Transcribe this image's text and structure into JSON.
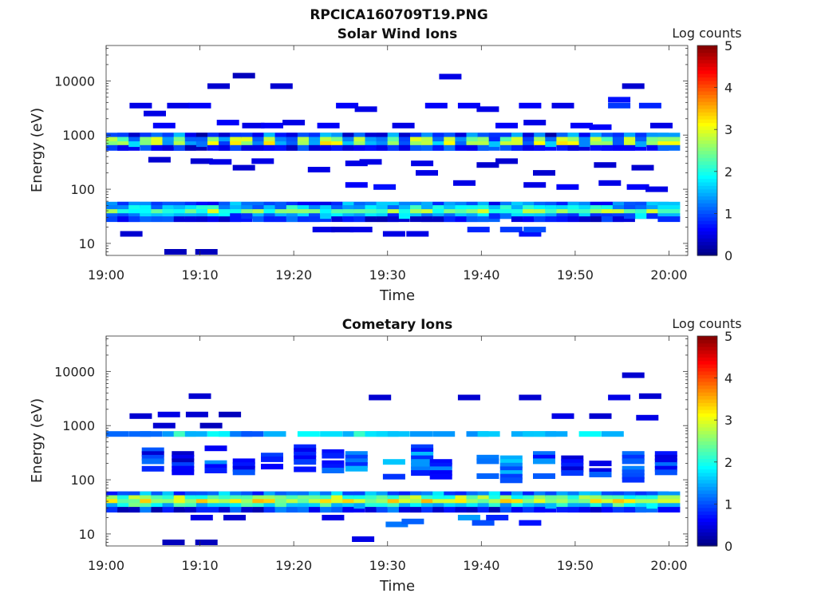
{
  "figure": {
    "title": "RPCICA160709T19.PNG",
    "colorbar_ticks": [
      "0",
      "1",
      "2",
      "3",
      "4",
      "5"
    ]
  },
  "chart_data": [
    {
      "type": "heatmap",
      "title": "Solar Wind Ions",
      "xlabel": "Time",
      "ylabel": "Energy (eV)",
      "colorbar_label": "Log counts",
      "y_scale": "log",
      "ylim": [
        6,
        45000
      ],
      "xlim_minutes": [
        0,
        62
      ],
      "x_tick_labels": [
        "19:00",
        "19:10",
        "19:20",
        "19:30",
        "19:40",
        "19:50",
        "20:00"
      ],
      "x_ticks_minutes": [
        0,
        10,
        20,
        30,
        40,
        50,
        60
      ],
      "y_tick_labels": [
        "10",
        "100",
        "1000",
        "10000"
      ],
      "y_ticks": [
        10,
        100,
        1000,
        10000
      ],
      "clim": [
        0,
        5
      ],
      "colormap": "jet",
      "bands": [
        {
          "name": "low",
          "energies": [
            52,
            45,
            38,
            32,
            28
          ],
          "profile": [
            1.1,
            1.6,
            2.4,
            1.3,
            0.6
          ]
        },
        {
          "name": "mid",
          "energies": [
            980,
            820,
            680,
            580
          ],
          "profile": [
            1.2,
            2.6,
            2.9,
            0.8
          ]
        }
      ],
      "scatter_points": [
        {
          "t": 1.5,
          "e": 15,
          "v": 0.4
        },
        {
          "t": 6.2,
          "e": 7,
          "v": 0.3
        },
        {
          "t": 9.5,
          "e": 7,
          "v": 0.3
        },
        {
          "t": 22.0,
          "e": 18,
          "v": 0.5
        },
        {
          "t": 24.0,
          "e": 18,
          "v": 0.4
        },
        {
          "t": 26.0,
          "e": 18,
          "v": 0.5
        },
        {
          "t": 29.5,
          "e": 15,
          "v": 0.5
        },
        {
          "t": 32.0,
          "e": 15,
          "v": 0.5
        },
        {
          "t": 38.5,
          "e": 18,
          "v": 0.8
        },
        {
          "t": 42.0,
          "e": 18,
          "v": 0.9
        },
        {
          "t": 44.0,
          "e": 15,
          "v": 0.7
        },
        {
          "t": 44.5,
          "e": 18,
          "v": 1.0
        },
        {
          "t": 10.8,
          "e": 8000,
          "v": 0.4
        },
        {
          "t": 13.5,
          "e": 12500,
          "v": 0.3
        },
        {
          "t": 17.5,
          "e": 8000,
          "v": 0.4
        },
        {
          "t": 35.5,
          "e": 12000,
          "v": 0.5
        },
        {
          "t": 55.0,
          "e": 8000,
          "v": 0.4
        },
        {
          "t": 61.5,
          "e": 12500,
          "v": 0.3
        },
        {
          "t": 53.5,
          "e": 4500,
          "v": 0.7
        },
        {
          "t": 53.5,
          "e": 3500,
          "v": 0.9
        },
        {
          "t": 56.8,
          "e": 3500,
          "v": 0.8
        },
        {
          "t": 60.0,
          "e": 3500,
          "v": 1.3
        },
        {
          "t": 44.0,
          "e": 3500,
          "v": 0.6
        },
        {
          "t": 47.5,
          "e": 3500,
          "v": 0.5
        },
        {
          "t": 37.5,
          "e": 3500,
          "v": 0.6
        },
        {
          "t": 34.0,
          "e": 3500,
          "v": 0.6
        },
        {
          "t": 39.5,
          "e": 3000,
          "v": 0.5
        },
        {
          "t": 24.5,
          "e": 3500,
          "v": 0.6
        },
        {
          "t": 26.5,
          "e": 3000,
          "v": 0.5
        },
        {
          "t": 2.5,
          "e": 3500,
          "v": 0.5
        },
        {
          "t": 6.5,
          "e": 3500,
          "v": 0.5
        },
        {
          "t": 8.8,
          "e": 3500,
          "v": 0.6
        },
        {
          "t": 4.0,
          "e": 2500,
          "v": 0.5
        },
        {
          "t": 5.0,
          "e": 1500,
          "v": 0.6
        },
        {
          "t": 11.8,
          "e": 1700,
          "v": 0.6
        },
        {
          "t": 14.5,
          "e": 1500,
          "v": 0.5
        },
        {
          "t": 16.5,
          "e": 1500,
          "v": 0.6
        },
        {
          "t": 18.8,
          "e": 1700,
          "v": 0.5
        },
        {
          "t": 22.5,
          "e": 1500,
          "v": 0.6
        },
        {
          "t": 30.5,
          "e": 1500,
          "v": 0.5
        },
        {
          "t": 41.5,
          "e": 1500,
          "v": 0.6
        },
        {
          "t": 44.5,
          "e": 1700,
          "v": 0.5
        },
        {
          "t": 49.5,
          "e": 1500,
          "v": 0.6
        },
        {
          "t": 51.5,
          "e": 1400,
          "v": 0.6
        },
        {
          "t": 58.0,
          "e": 1500,
          "v": 0.5
        },
        {
          "t": 4.5,
          "e": 350,
          "v": 0.4
        },
        {
          "t": 9.0,
          "e": 330,
          "v": 0.4
        },
        {
          "t": 11.0,
          "e": 320,
          "v": 0.5
        },
        {
          "t": 13.5,
          "e": 250,
          "v": 0.4
        },
        {
          "t": 15.5,
          "e": 330,
          "v": 0.5
        },
        {
          "t": 21.5,
          "e": 230,
          "v": 0.5
        },
        {
          "t": 25.5,
          "e": 300,
          "v": 0.5
        },
        {
          "t": 27.0,
          "e": 320,
          "v": 0.5
        },
        {
          "t": 32.5,
          "e": 300,
          "v": 0.5
        },
        {
          "t": 33.0,
          "e": 200,
          "v": 0.5
        },
        {
          "t": 39.5,
          "e": 280,
          "v": 0.4
        },
        {
          "t": 41.5,
          "e": 330,
          "v": 0.4
        },
        {
          "t": 45.5,
          "e": 200,
          "v": 0.4
        },
        {
          "t": 52.0,
          "e": 280,
          "v": 0.4
        },
        {
          "t": 56.0,
          "e": 250,
          "v": 0.4
        },
        {
          "t": 60.5,
          "e": 240,
          "v": 0.4
        },
        {
          "t": 25.5,
          "e": 120,
          "v": 0.6
        },
        {
          "t": 28.5,
          "e": 110,
          "v": 0.7
        },
        {
          "t": 37.0,
          "e": 130,
          "v": 0.5
        },
        {
          "t": 44.5,
          "e": 120,
          "v": 0.5
        },
        {
          "t": 48.0,
          "e": 110,
          "v": 0.6
        },
        {
          "t": 52.5,
          "e": 130,
          "v": 0.5
        },
        {
          "t": 55.5,
          "e": 110,
          "v": 0.6
        },
        {
          "t": 57.5,
          "e": 100,
          "v": 0.5
        }
      ]
    },
    {
      "type": "heatmap",
      "title": "Cometary Ions",
      "xlabel": "Time",
      "ylabel": "Energy (eV)",
      "colorbar_label": "Log counts",
      "y_scale": "log",
      "ylim": [
        6,
        45000
      ],
      "xlim_minutes": [
        0,
        62
      ],
      "x_tick_labels": [
        "19:00",
        "19:10",
        "19:20",
        "19:30",
        "19:40",
        "19:50",
        "20:00"
      ],
      "x_ticks_minutes": [
        0,
        10,
        20,
        30,
        40,
        50,
        60
      ],
      "y_tick_labels": [
        "10",
        "100",
        "1000",
        "10000"
      ],
      "y_ticks": [
        10,
        100,
        1000,
        10000
      ],
      "clim": [
        0,
        5
      ],
      "colormap": "jet",
      "bands": [
        {
          "name": "low",
          "energies": [
            54,
            46,
            39,
            33,
            28
          ],
          "profile": [
            1.3,
            2.4,
            2.9,
            1.9,
            0.7
          ]
        },
        {
          "name": "mid",
          "energies": [
            700
          ],
          "profile": [
            1.6
          ]
        }
      ],
      "columns": [
        {
          "t": 3.8,
          "e_top": 350,
          "e_bottom": 150,
          "v": 0.8
        },
        {
          "t": 7.0,
          "e_top": 300,
          "e_bottom": 120,
          "v": 0.7
        },
        {
          "t": 10.5,
          "e_top": 380,
          "e_bottom": 140,
          "v": 1.0
        },
        {
          "t": 13.5,
          "e_top": 300,
          "e_bottom": 120,
          "v": 0.9
        },
        {
          "t": 16.5,
          "e_top": 280,
          "e_bottom": 130,
          "v": 0.6
        },
        {
          "t": 20.0,
          "e_top": 400,
          "e_bottom": 150,
          "v": 0.8
        },
        {
          "t": 23.0,
          "e_top": 380,
          "e_bottom": 130,
          "v": 0.9
        },
        {
          "t": 25.5,
          "e_top": 300,
          "e_bottom": 120,
          "v": 1.1
        },
        {
          "t": 29.5,
          "e_top": 250,
          "e_bottom": 100,
          "v": 1.3
        },
        {
          "t": 32.5,
          "e_top": 400,
          "e_bottom": 100,
          "v": 1.1
        },
        {
          "t": 34.5,
          "e_top": 250,
          "e_bottom": 110,
          "v": 0.9
        },
        {
          "t": 39.5,
          "e_top": 300,
          "e_bottom": 100,
          "v": 1.4
        },
        {
          "t": 42.0,
          "e_top": 250,
          "e_bottom": 95,
          "v": 1.2
        },
        {
          "t": 45.5,
          "e_top": 300,
          "e_bottom": 100,
          "v": 1.0
        },
        {
          "t": 48.5,
          "e_top": 250,
          "e_bottom": 110,
          "v": 0.8
        },
        {
          "t": 51.5,
          "e_top": 200,
          "e_bottom": 110,
          "v": 0.8
        },
        {
          "t": 55.0,
          "e_top": 300,
          "e_bottom": 95,
          "v": 1.1
        },
        {
          "t": 58.5,
          "e_top": 300,
          "e_bottom": 100,
          "v": 0.9
        },
        {
          "t": 61.0,
          "e_top": 350,
          "e_bottom": 85,
          "v": 1.3
        }
      ],
      "scatter_points": [
        {
          "t": 6.0,
          "e": 7,
          "v": 0.3
        },
        {
          "t": 9.5,
          "e": 7,
          "v": 0.3
        },
        {
          "t": 26.2,
          "e": 8,
          "v": 0.5
        },
        {
          "t": 9.0,
          "e": 20,
          "v": 0.5
        },
        {
          "t": 12.5,
          "e": 20,
          "v": 0.4
        },
        {
          "t": 23.0,
          "e": 20,
          "v": 0.5
        },
        {
          "t": 29.8,
          "e": 15,
          "v": 1.2
        },
        {
          "t": 31.5,
          "e": 17,
          "v": 1.1
        },
        {
          "t": 37.5,
          "e": 20,
          "v": 1.4
        },
        {
          "t": 39.0,
          "e": 16,
          "v": 1.0
        },
        {
          "t": 44.0,
          "e": 16,
          "v": 0.7
        },
        {
          "t": 40.5,
          "e": 20,
          "v": 0.8
        },
        {
          "t": 8.8,
          "e": 3500,
          "v": 0.4
        },
        {
          "t": 28.0,
          "e": 3300,
          "v": 0.4
        },
        {
          "t": 37.5,
          "e": 3300,
          "v": 0.4
        },
        {
          "t": 44.0,
          "e": 3300,
          "v": 0.4
        },
        {
          "t": 53.5,
          "e": 3300,
          "v": 0.5
        },
        {
          "t": 56.8,
          "e": 3500,
          "v": 0.4
        },
        {
          "t": 60.0,
          "e": 3500,
          "v": 0.5
        },
        {
          "t": 55.0,
          "e": 8500,
          "v": 0.4
        },
        {
          "t": 2.5,
          "e": 1500,
          "v": 0.4
        },
        {
          "t": 5.5,
          "e": 1600,
          "v": 0.5
        },
        {
          "t": 8.5,
          "e": 1600,
          "v": 0.4
        },
        {
          "t": 47.5,
          "e": 1500,
          "v": 0.5
        },
        {
          "t": 51.5,
          "e": 1500,
          "v": 0.4
        },
        {
          "t": 56.5,
          "e": 1400,
          "v": 0.5
        },
        {
          "t": 60.0,
          "e": 1500,
          "v": 0.5
        },
        {
          "t": 12.0,
          "e": 1600,
          "v": 0.3
        },
        {
          "t": 5.0,
          "e": 1000,
          "v": 0.4
        },
        {
          "t": 10.0,
          "e": 1000,
          "v": 0.3
        }
      ]
    }
  ]
}
